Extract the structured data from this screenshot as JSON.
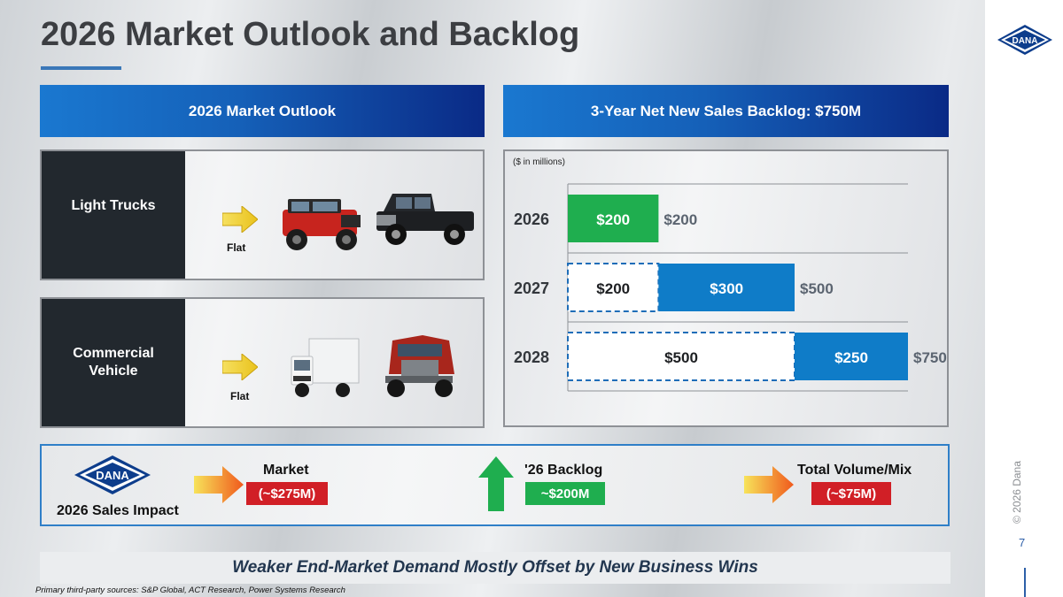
{
  "slide": {
    "title": "2026 Market Outlook and Backlog",
    "page_number": "7",
    "copyright": "© 2026 Dana",
    "logo_text": "DANA"
  },
  "market_outlook": {
    "header": "2026 Market Outlook",
    "segments": [
      {
        "label": "Light Trucks",
        "trend": "Flat"
      },
      {
        "label": "Commercial Vehicle",
        "label_line1": "Commercial",
        "label_line2": "Vehicle",
        "trend": "Flat"
      }
    ]
  },
  "backlog": {
    "header": "3-Year Net New Sales Backlog: $750M",
    "units_note": "($ in millions)"
  },
  "chart_data": {
    "type": "bar",
    "orientation": "horizontal",
    "stacked": true,
    "categories": [
      "2026",
      "2027",
      "2028"
    ],
    "series": [
      {
        "values": [
          0,
          200,
          500
        ],
        "labels": [
          "",
          "$200",
          "$500"
        ],
        "color": "#ffffff",
        "dashed_outline": true
      },
      {
        "values": [
          200,
          0,
          0
        ],
        "labels": [
          "$200",
          "",
          ""
        ],
        "color": "#1fae4f"
      },
      {
        "values": [
          0,
          300,
          250
        ],
        "labels": [
          "",
          "$300",
          "$250"
        ],
        "color": "#0f7cc8"
      }
    ],
    "totals": [
      "$200",
      "$500",
      "$750"
    ],
    "xlim": [
      0,
      750
    ],
    "grid": true
  },
  "impact": {
    "logo_text": "DANA",
    "caption": "2026 Sales Impact",
    "items": [
      {
        "label": "Market",
        "value": "(~$275M)",
        "color": "#d11f26"
      },
      {
        "label": "'26 Backlog",
        "value": "~$200M",
        "color": "#1fae4f"
      },
      {
        "label": "Total Volume/Mix",
        "value": "(~$75M)",
        "color": "#d11f26"
      }
    ]
  },
  "footer": {
    "tagline": "Weaker End-Market Demand Mostly Offset by New Business Wins",
    "source": "Primary third-party sources: S&P Global, ACT Research, Power Systems Research"
  },
  "colors": {
    "banner_blue": "#1560b8",
    "dark_navy": "#0a2a86",
    "green": "#1fae4f",
    "red": "#d11f26",
    "chart_blue": "#0f7cc8"
  }
}
